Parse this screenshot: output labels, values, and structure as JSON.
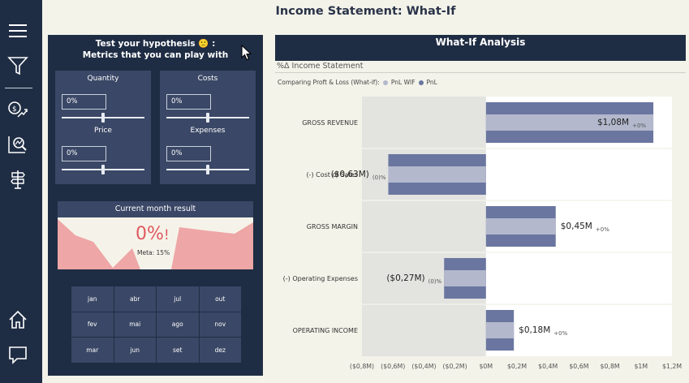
{
  "page": {
    "title": "Income Statement: What-If"
  },
  "nav": {
    "items": [
      {
        "icon": "menu-icon"
      },
      {
        "icon": "filter-icon"
      },
      {
        "icon": "money-growth-icon"
      },
      {
        "icon": "chart-search-icon"
      },
      {
        "icon": "signpost-icon"
      },
      {
        "icon": "home-icon"
      },
      {
        "icon": "chat-icon"
      }
    ]
  },
  "controls": {
    "heading_line1": "Test your hypothesis 🙁 :",
    "heading_line2": "Metrics that you can play with",
    "metrics": [
      {
        "label": "Quantity",
        "value": "0%",
        "slider": 0.5
      },
      {
        "label": "Costs",
        "value": "0%",
        "slider": 0.5
      },
      {
        "label": "Price",
        "value": "0%",
        "slider": 0.5
      },
      {
        "label": "Expenses",
        "value": "0%",
        "slider": 0.5
      }
    ],
    "current_month": {
      "title": "Current month result",
      "value": "0%",
      "exclaim": "!",
      "meta": "Meta: 15%"
    },
    "months": [
      "jan",
      "abr",
      "jul",
      "out",
      "fev",
      "mai",
      "ago",
      "nov",
      "mar",
      "jun",
      "set",
      "dez"
    ]
  },
  "chart": {
    "header": "What-If Analysis",
    "subtitle": "%Δ Income Statement",
    "legend_title": "Comparing Proft & Loss (What-if):",
    "legend": [
      {
        "name": "PnL WIF",
        "color": "#b3b8cc"
      },
      {
        "name": "PnL",
        "color": "#6a76a0"
      }
    ]
  },
  "chart_data": {
    "type": "bar",
    "orientation": "horizontal",
    "categories": [
      "GROSS REVENUE",
      "(-) Cost of Sales",
      "GROSS MARGIN",
      "(-) Operating Expenses",
      "OPERATING INCOME"
    ],
    "series": [
      {
        "name": "PnL",
        "values": [
          1.08,
          -0.63,
          0.45,
          -0.27,
          0.18
        ]
      },
      {
        "name": "PnL WIF",
        "values": [
          1.08,
          -0.63,
          0.45,
          -0.27,
          0.18
        ]
      }
    ],
    "value_labels": [
      "$1,08M",
      "($0,63M)",
      "$0,45M",
      "($0,27M)",
      "$0,18M"
    ],
    "pct_labels": [
      "+0%",
      "(0)%",
      "+0%",
      "(0)%",
      "+0%"
    ],
    "x_ticks": [
      "($0,8M)",
      "($0,6M)",
      "($0,4M)",
      "($0,2M)",
      "$0M",
      "$0,2M",
      "$0,4M",
      "$0,6M",
      "$0,8M",
      "$1M",
      "$1,2M"
    ],
    "xlim": [
      -0.8,
      1.2
    ],
    "unit": "$M",
    "colors": {
      "pnl": "#6a76a0",
      "pnl_wif": "#b3b8cc",
      "negative_bg": "#e3e3e0"
    }
  }
}
